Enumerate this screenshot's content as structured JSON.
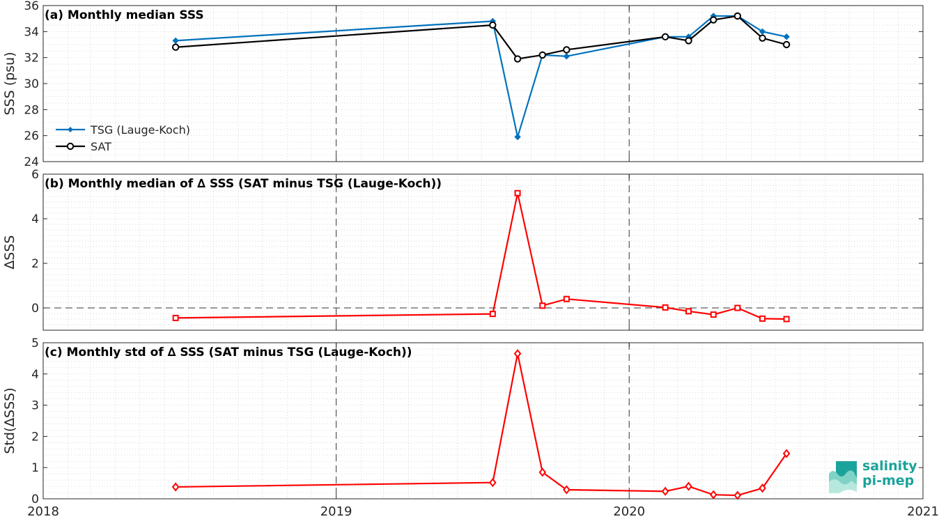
{
  "chart_data": [
    {
      "type": "line",
      "title": "(a) Monthly median SSS",
      "xlabel": "",
      "ylabel": "SSS (psu)",
      "xlim": [
        "2018-01-01",
        "2021-01-01"
      ],
      "ylim": [
        24,
        36
      ],
      "yticks": [
        24,
        26,
        28,
        30,
        32,
        34,
        36
      ],
      "grid": true,
      "legend": "bottom-left",
      "x": [
        "2018-06-15",
        "2019-07-15",
        "2019-08-15",
        "2019-09-15",
        "2019-10-15",
        "2020-02-15",
        "2020-03-15",
        "2020-04-15",
        "2020-05-15",
        "2020-06-15",
        "2020-07-15"
      ],
      "series": [
        {
          "name": "TSG (Lauge-Koch)",
          "color": "#0072bd",
          "marker": "filled-diamond",
          "values": [
            33.3,
            34.8,
            25.9,
            32.2,
            32.1,
            33.6,
            33.6,
            35.2,
            35.2,
            34.0,
            33.6
          ]
        },
        {
          "name": "SAT",
          "color": "#000000",
          "marker": "circle",
          "values": [
            32.8,
            34.5,
            31.9,
            32.2,
            32.6,
            33.6,
            33.3,
            34.9,
            35.2,
            33.5,
            33.0
          ]
        }
      ]
    },
    {
      "type": "line",
      "title": "(b) Monthly median of ∆ SSS (SAT minus TSG (Lauge-Koch))",
      "xlabel": "",
      "ylabel": "∆SSS",
      "xlim": [
        "2018-01-01",
        "2021-01-01"
      ],
      "ylim": [
        -1,
        6
      ],
      "yticks": [
        0,
        2,
        4,
        6
      ],
      "grid": true,
      "zero_line": true,
      "x": [
        "2018-06-15",
        "2019-07-15",
        "2019-08-15",
        "2019-09-15",
        "2019-10-15",
        "2020-02-15",
        "2020-03-15",
        "2020-04-15",
        "2020-05-15",
        "2020-06-15",
        "2020-07-15"
      ],
      "series": [
        {
          "color": "#ff0000",
          "marker": "square",
          "values": [
            -0.45,
            -0.27,
            5.15,
            0.1,
            0.4,
            0.02,
            -0.15,
            -0.3,
            0.0,
            -0.48,
            -0.5
          ]
        }
      ]
    },
    {
      "type": "line",
      "title": "(c) Monthly std of ∆ SSS (SAT minus TSG (Lauge-Koch))",
      "xlabel": "",
      "ylabel": "Std(∆SSS)",
      "xlim": [
        "2018-01-01",
        "2021-01-01"
      ],
      "ylim": [
        0,
        5
      ],
      "yticks": [
        0,
        1,
        2,
        3,
        4,
        5
      ],
      "xticks": [
        "2018",
        "2019",
        "2020",
        "2021"
      ],
      "grid": true,
      "x": [
        "2018-06-15",
        "2019-07-15",
        "2019-08-15",
        "2019-09-15",
        "2019-10-15",
        "2020-02-15",
        "2020-03-15",
        "2020-04-15",
        "2020-05-15",
        "2020-06-15",
        "2020-07-15"
      ],
      "series": [
        {
          "color": "#ff0000",
          "marker": "diamond",
          "values": [
            0.38,
            0.52,
            4.65,
            0.85,
            0.29,
            0.24,
            0.4,
            0.13,
            0.11,
            0.34,
            1.45
          ]
        }
      ]
    }
  ],
  "logo": {
    "line1": "salinity",
    "line2": "pi-mep"
  }
}
